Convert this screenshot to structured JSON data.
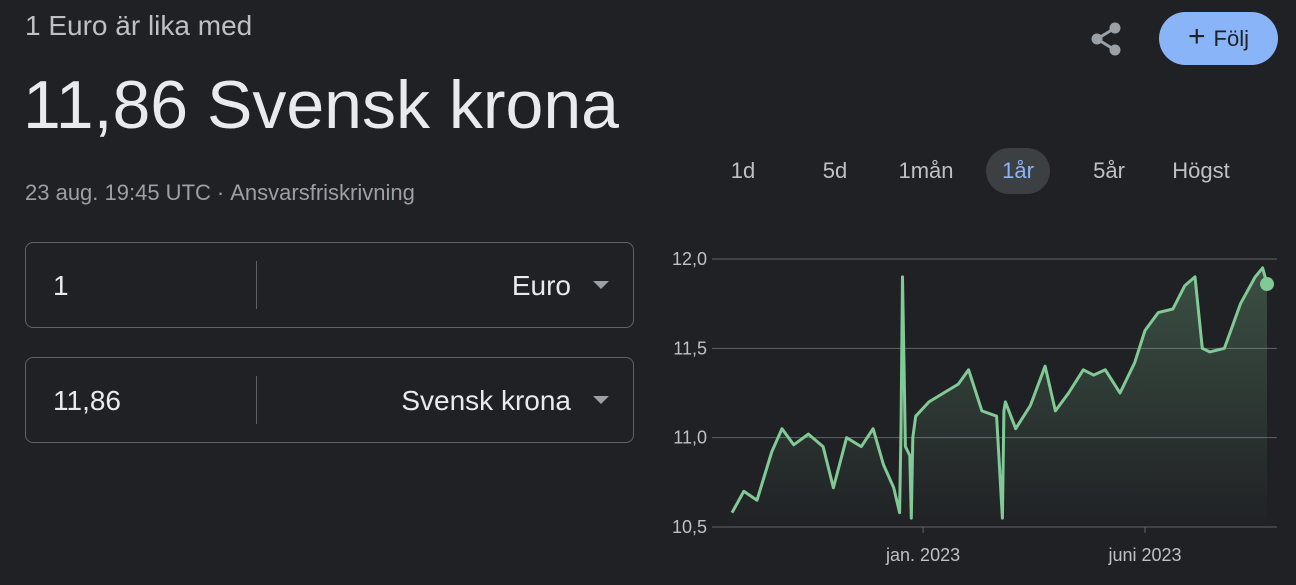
{
  "header": {
    "subtitle": "1 Euro är lika med",
    "value_line": "11,86 Svensk krona",
    "timestamp": "23 aug. 19:45 UTC",
    "separator": "·",
    "disclaimer": "Ansvarsfriskrivning"
  },
  "actions": {
    "share_icon": "share-icon",
    "follow_label": "Följ",
    "follow_color": "#8ab4f8"
  },
  "converter": {
    "from": {
      "amount": "1",
      "currency": "Euro"
    },
    "to": {
      "amount": "11,86",
      "currency": "Svensk krona"
    }
  },
  "tabs": [
    {
      "label": "1d"
    },
    {
      "label": "5d"
    },
    {
      "label": "1mån"
    },
    {
      "label": "1år",
      "active": true
    },
    {
      "label": "5år"
    },
    {
      "label": "Högst"
    }
  ],
  "chart_data": {
    "type": "line",
    "title": "",
    "xlabel": "",
    "ylabel": "",
    "ylim": [
      10.5,
      12.0
    ],
    "yticks": [
      12.0,
      11.5,
      11.0,
      10.5
    ],
    "ytick_labels": [
      "12,0",
      "11,5",
      "11,0",
      "10,5"
    ],
    "xlim": [
      "2022-08-24",
      "2023-08-23"
    ],
    "xticks": [
      {
        "date": "2023-01-01",
        "label": "jan. 2023"
      },
      {
        "date": "2023-06-01",
        "label": "juni 2023"
      }
    ],
    "grid": true,
    "line_color": "#81c995",
    "x": [
      "2022-08-24",
      "2022-09-01",
      "2022-09-10",
      "2022-09-20",
      "2022-09-27",
      "2022-10-05",
      "2022-10-15",
      "2022-10-25",
      "2022-11-01",
      "2022-11-10",
      "2022-11-20",
      "2022-11-28",
      "2022-12-05",
      "2022-12-12",
      "2022-12-16",
      "2022-12-17",
      "2022-12-18",
      "2022-12-20",
      "2022-12-23",
      "2022-12-24",
      "2022-12-25",
      "2022-12-27",
      "2023-01-05",
      "2023-01-15",
      "2023-01-25",
      "2023-02-01",
      "2023-02-10",
      "2023-02-20",
      "2023-02-24",
      "2023-02-25",
      "2023-02-26",
      "2023-03-05",
      "2023-03-15",
      "2023-03-25",
      "2023-04-01",
      "2023-04-10",
      "2023-04-20",
      "2023-04-27",
      "2023-05-05",
      "2023-05-15",
      "2023-05-25",
      "2023-06-01",
      "2023-06-10",
      "2023-06-20",
      "2023-06-28",
      "2023-07-05",
      "2023-07-10",
      "2023-07-15",
      "2023-07-25",
      "2023-08-05",
      "2023-08-15",
      "2023-08-20",
      "2023-08-23"
    ],
    "values": [
      10.58,
      10.7,
      10.65,
      10.92,
      11.05,
      10.96,
      11.02,
      10.95,
      10.72,
      11.0,
      10.95,
      11.05,
      10.85,
      10.72,
      10.58,
      11.05,
      11.9,
      10.95,
      10.9,
      10.55,
      11.0,
      11.12,
      11.2,
      11.25,
      11.3,
      11.38,
      11.15,
      11.12,
      10.55,
      11.15,
      11.2,
      11.05,
      11.18,
      11.4,
      11.15,
      11.25,
      11.38,
      11.35,
      11.38,
      11.25,
      11.42,
      11.6,
      11.7,
      11.72,
      11.85,
      11.9,
      11.5,
      11.48,
      11.5,
      11.75,
      11.9,
      11.95,
      11.86
    ]
  }
}
